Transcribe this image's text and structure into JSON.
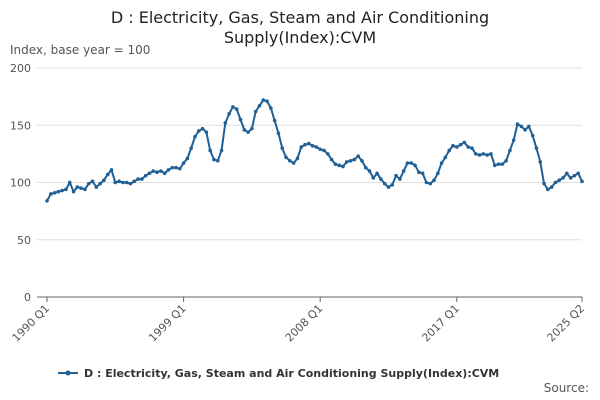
{
  "chart_data": {
    "type": "line",
    "title": "D : Electricity, Gas, Steam and Air Conditioning Supply(Index):CVM",
    "y_label": "Index, base year = 100",
    "source": "Source:",
    "categories": [
      "1990 Q1",
      null,
      null,
      null,
      null,
      null,
      null,
      null,
      null,
      null,
      null,
      null,
      null,
      null,
      null,
      null,
      null,
      null,
      null,
      null,
      null,
      null,
      null,
      null,
      null,
      null,
      null,
      null,
      null,
      null,
      null,
      null,
      null,
      null,
      null,
      null,
      "1999 Q1",
      null,
      null,
      null,
      null,
      null,
      null,
      null,
      null,
      null,
      null,
      null,
      null,
      null,
      null,
      null,
      null,
      null,
      null,
      null,
      null,
      null,
      null,
      null,
      null,
      null,
      null,
      null,
      null,
      null,
      null,
      null,
      null,
      null,
      null,
      null,
      "2008 Q1",
      null,
      null,
      null,
      null,
      null,
      null,
      null,
      null,
      null,
      null,
      null,
      null,
      null,
      null,
      null,
      null,
      null,
      null,
      null,
      null,
      null,
      null,
      null,
      null,
      null,
      null,
      null,
      null,
      null,
      null,
      null,
      null,
      null,
      null,
      null,
      "2017 Q1",
      null,
      null,
      null,
      null,
      null,
      null,
      null,
      null,
      null,
      null,
      null,
      null,
      null,
      null,
      null,
      null,
      null,
      null,
      null,
      null,
      null,
      null,
      null,
      null,
      null,
      null,
      null,
      null,
      null,
      null,
      null,
      null,
      "2025 Q2"
    ],
    "series": [
      {
        "name": "D : Electricity, Gas, Steam and Air Conditioning Supply(Index):CVM",
        "color": "#206095",
        "values": [
          84,
          90,
          91,
          92,
          93,
          94,
          100,
          92,
          96,
          95,
          94,
          99,
          101,
          96,
          99,
          102,
          107,
          111,
          100,
          101,
          100,
          100,
          99,
          101,
          103,
          103,
          106,
          108,
          110,
          109,
          110,
          108,
          111,
          113,
          113,
          112,
          117,
          121,
          130,
          140,
          145,
          147,
          144,
          128,
          120,
          119,
          128,
          152,
          160,
          166,
          164,
          155,
          146,
          144,
          147,
          162,
          167,
          172,
          171,
          165,
          154,
          143,
          130,
          122,
          119,
          117,
          121,
          131,
          133,
          134,
          132,
          131,
          129,
          128,
          125,
          120,
          116,
          115,
          114,
          118,
          119,
          120,
          123,
          119,
          113,
          110,
          104,
          108,
          103,
          99,
          96,
          98,
          106,
          103,
          110,
          117,
          117,
          115,
          109,
          108,
          100,
          99,
          102,
          108,
          117,
          122,
          128,
          132,
          131,
          133,
          135,
          131,
          130,
          125,
          124,
          125,
          124,
          125,
          115,
          116,
          116,
          119,
          128,
          137,
          151,
          149,
          146,
          149,
          141,
          130,
          118,
          99,
          94,
          96,
          100,
          102,
          104,
          108,
          104,
          106,
          108,
          101
        ]
      }
    ],
    "ylim": [
      0,
      200
    ],
    "yticks": [
      0,
      50,
      100,
      150,
      200
    ],
    "grid": true
  }
}
